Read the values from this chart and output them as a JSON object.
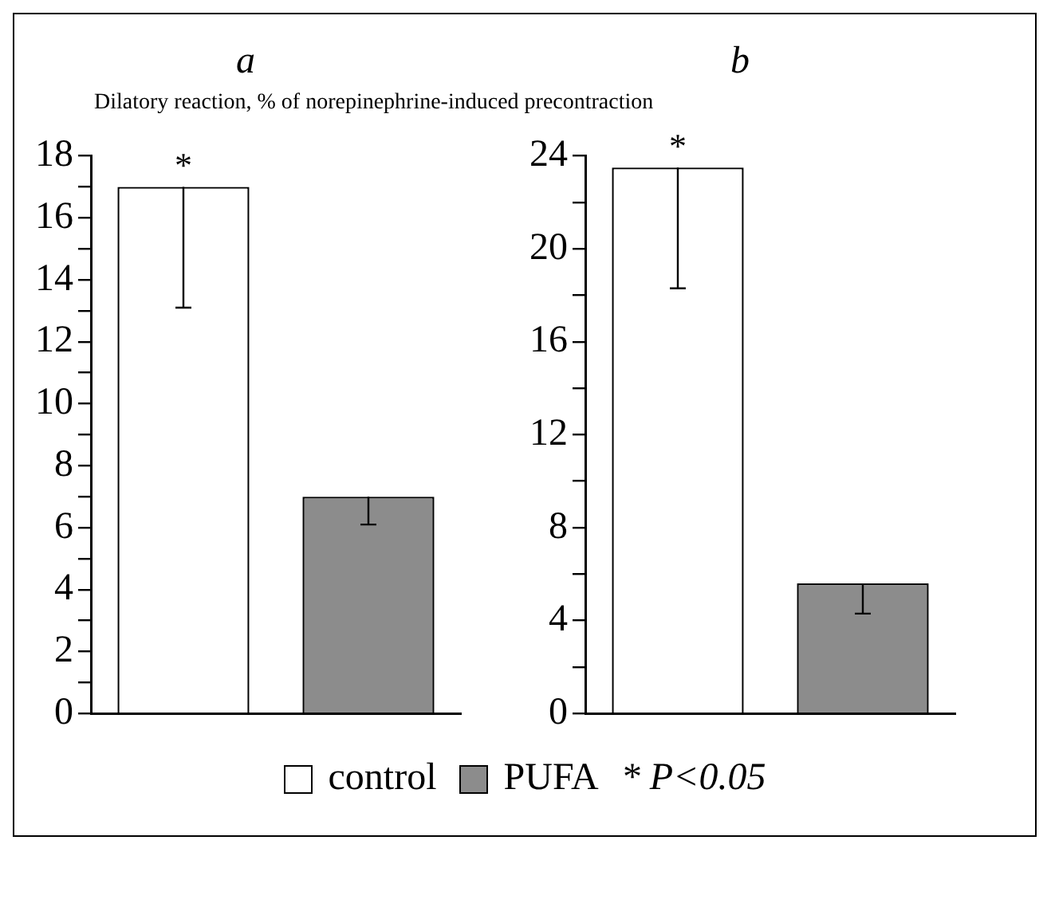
{
  "chart_data": [
    {
      "type": "bar",
      "title": "a",
      "ylabel": "Dilatory reaction, % of norepinephrine-induced precontraction",
      "categories": [
        null,
        null
      ],
      "series": [
        {
          "name": "control",
          "color": "#ffffff",
          "values": [
            17,
            null
          ],
          "errors": [
            [
              13.1,
              17
            ],
            null
          ]
        },
        {
          "name": "PUFA",
          "color": "#8c8c8c",
          "values": [
            null,
            7
          ],
          "errors": [
            null,
            [
              6.1,
              7
            ]
          ]
        }
      ],
      "ylim": [
        0,
        18
      ],
      "yticks": [
        0,
        {
          "value": 1,
          "label": null
        },
        2,
        {
          "value": 3,
          "label": null
        },
        4,
        {
          "value": 5,
          "label": null
        },
        6,
        {
          "value": 7,
          "label": null
        },
        8,
        {
          "value": 9,
          "label": null
        },
        10,
        {
          "value": 11,
          "label": null
        },
        12,
        {
          "value": 13,
          "label": null
        },
        14,
        {
          "value": 15,
          "label": null
        },
        16,
        {
          "value": 17,
          "label": null
        },
        18
      ],
      "tick_labels": "y",
      "grid": false,
      "legend": "bottom",
      "annotations": [
        "*",
        "* P<0.05"
      ]
    },
    {
      "type": "bar",
      "title": "b",
      "categories": [
        null,
        null
      ],
      "series": [
        {
          "color": "#ffffff",
          "values": [
            23.5,
            null
          ],
          "errors": [
            [
              18.3,
              23.5
            ],
            null
          ]
        },
        {
          "color": "#8c8c8c",
          "values": [
            null,
            5.6
          ],
          "errors": [
            null,
            [
              4.3,
              5.6
            ]
          ]
        }
      ],
      "ylim": [
        0,
        24
      ],
      "yticks": [
        0,
        {
          "value": 2,
          "label": null
        },
        4,
        {
          "value": 6,
          "label": null
        },
        8,
        {
          "value": 10,
          "label": null
        },
        12,
        {
          "value": 14,
          "label": null
        },
        16,
        {
          "value": 18,
          "label": null
        },
        20,
        {
          "value": 22,
          "label": null
        },
        24
      ],
      "tick_labels": "y",
      "grid": false,
      "annotations": [
        "*"
      ]
    }
  ]
}
